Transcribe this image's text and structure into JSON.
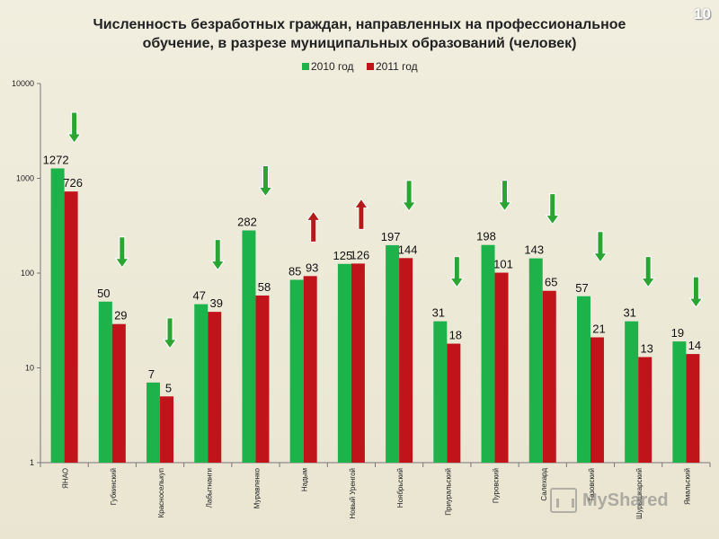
{
  "slide": {
    "title_line1": "Численность безработных граждан, направленных на профессиональное",
    "title_line2": "обучение, в разрезе муниципальных образований (человек)",
    "page_number": "10",
    "watermark": "MyShared"
  },
  "chart_data": {
    "type": "bar",
    "title": "Численность безработных граждан, направленных на профессиональное обучение, в разрезе муниципальных образований (человек)",
    "yscale": "log",
    "ylim": [
      1,
      10000
    ],
    "yticks": [
      "1",
      "10",
      "100",
      "1000",
      "10000"
    ],
    "legend_position": "top-center",
    "grid": false,
    "categories": [
      "ЯНАО",
      "Губкинский",
      "Красноселькуп",
      "Лабытнанги",
      "Муравленко",
      "Надым",
      "Новый Уренгой",
      "Ноябрьский",
      "Приуральский",
      "Пуровский",
      "Салехард",
      "Тазовский",
      "Шурышкарский",
      "Ямальский"
    ],
    "series": [
      {
        "name": "2010 год",
        "color": "#1db34a",
        "values": [
          1272,
          50,
          7,
          47,
          282,
          85,
          125,
          197,
          31,
          198,
          143,
          57,
          31,
          19
        ],
        "labels": [
          "1272",
          "50",
          "7",
          "47",
          "282",
          "85",
          "125",
          "197",
          "31",
          "198",
          "143",
          "57",
          "31",
          "19"
        ]
      },
      {
        "name": "2011 год",
        "color": "#c0141a",
        "values": [
          726,
          29,
          5,
          39,
          58,
          93,
          126,
          144,
          18,
          101,
          65,
          21,
          13,
          14
        ],
        "labels": [
          "726",
          "29",
          "5",
          "39",
          "58",
          "93",
          "126",
          "144",
          "18",
          "101",
          "65",
          "21",
          "13",
          "14"
        ]
      }
    ],
    "trend_arrows": [
      "down",
      "down",
      "down",
      "down",
      "down",
      "up",
      "up",
      "down",
      "down",
      "down",
      "down",
      "down",
      "down",
      "down"
    ],
    "arrow_colors": {
      "down": "#2aa532",
      "up": "#b31a1a"
    }
  }
}
